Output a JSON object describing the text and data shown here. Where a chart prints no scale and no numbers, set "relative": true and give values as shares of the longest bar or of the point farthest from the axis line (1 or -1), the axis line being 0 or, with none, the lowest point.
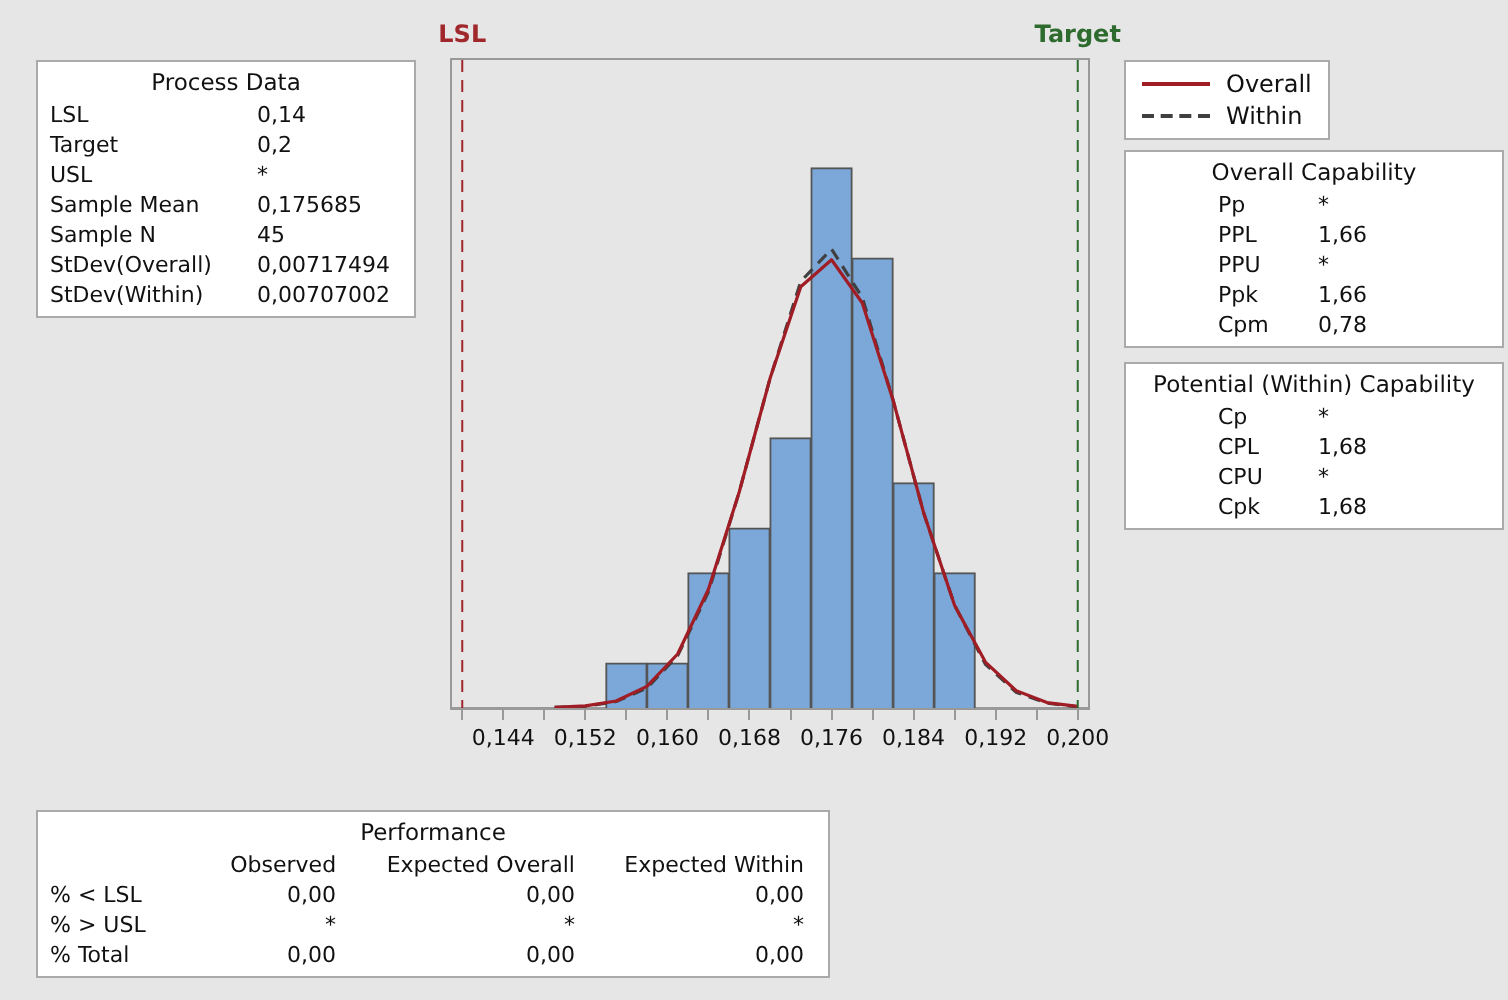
{
  "chart_data": [
    {
      "type": "histogram",
      "bins": [
        0.154,
        0.158,
        0.162,
        0.166,
        0.17,
        0.174,
        0.178,
        0.182,
        0.186,
        0.19
      ],
      "values": [
        0.083,
        0.083,
        0.25,
        0.333,
        0.5,
        1,
        0.833,
        0.417,
        0.25
      ],
      "color": "#7ba7d9",
      "relative": true,
      "series": [
        {
          "type": "line",
          "name": "Overall",
          "color": "#a01d26",
          "line_style": "solid",
          "x": [
            0.149,
            0.152,
            0.155,
            0.158,
            0.161,
            0.164,
            0.167,
            0.17,
            0.173,
            0.176,
            0.179,
            0.182,
            0.185,
            0.188,
            0.191,
            0.194,
            0.197,
            0.2
          ],
          "values": [
            0.001,
            0.004,
            0.013,
            0.04,
            0.1,
            0.22,
            0.4,
            0.61,
            0.78,
            0.83,
            0.75,
            0.57,
            0.36,
            0.19,
            0.085,
            0.032,
            0.01,
            0.003
          ]
        },
        {
          "type": "line",
          "name": "Within",
          "color": "#404040",
          "line_style": "dashed",
          "x": [
            0.149,
            0.152,
            0.155,
            0.158,
            0.161,
            0.164,
            0.167,
            0.17,
            0.173,
            0.176,
            0.179,
            0.182,
            0.185,
            0.188,
            0.191,
            0.194,
            0.197,
            0.2
          ],
          "values": [
            0.001,
            0.003,
            0.012,
            0.037,
            0.097,
            0.215,
            0.4,
            0.61,
            0.79,
            0.85,
            0.76,
            0.57,
            0.36,
            0.19,
            0.081,
            0.029,
            0.009,
            0.002
          ]
        }
      ],
      "xlim": [
        0.139,
        0.201
      ],
      "xticks": [
        {
          "value": 0.14,
          "label": null
        },
        {
          "value": 0.144,
          "label": "0,144"
        },
        {
          "value": 0.148,
          "label": null
        },
        {
          "value": 0.152,
          "label": "0,152"
        },
        {
          "value": 0.156,
          "label": null
        },
        {
          "value": 0.16,
          "label": "0,160"
        },
        {
          "value": 0.164,
          "label": null
        },
        {
          "value": 0.168,
          "label": "0,168"
        },
        {
          "value": 0.172,
          "label": null
        },
        {
          "value": 0.176,
          "label": "0,176"
        },
        {
          "value": 0.18,
          "label": null
        },
        {
          "value": 0.184,
          "label": "0,184"
        },
        {
          "value": 0.188,
          "label": null
        },
        {
          "value": 0.192,
          "label": "0,192"
        },
        {
          "value": 0.196,
          "label": null
        },
        {
          "value": 0.2,
          "label": "0,200"
        }
      ],
      "ref_lines": [
        {
          "axis": "x",
          "value": 0.14,
          "label": "LSL",
          "color": "#a0282d",
          "line_style": "dashed"
        },
        {
          "axis": "x",
          "value": 0.2,
          "label": "Target",
          "color": "#2e6b2e",
          "line_style": "dashed"
        }
      ],
      "legend": "top right",
      "grid": false,
      "tick_labels": "x",
      "marker": "none"
    },
    {
      "type": "other",
      "title": "Process Data",
      "annotations": [
        "LSL",
        "0,14",
        "Target",
        "0,2",
        "USL",
        "*",
        "Sample Mean",
        "0,175685",
        "Sample N",
        "45",
        "StDev(Overall)",
        "0,00717494",
        "StDev(Within)",
        "0,00707002"
      ]
    },
    {
      "type": "other",
      "title": "Overall Capability",
      "annotations": [
        "Pp",
        "*",
        "PPL",
        "1,66",
        "PPU",
        "*",
        "Ppk",
        "1,66",
        "Cpm",
        "0,78"
      ]
    },
    {
      "type": "other",
      "title": "Potential (Within) Capability",
      "annotations": [
        "Cp",
        "*",
        "CPL",
        "1,68",
        "CPU",
        "*",
        "Cpk",
        "1,68"
      ]
    },
    {
      "type": "other",
      "title": "Performance",
      "annotations": [
        "Observed",
        "Expected Overall",
        "Expected Within",
        "% < LSL",
        "0,00",
        "0,00",
        "0,00",
        "% > USL",
        "*",
        "*",
        "*",
        "% Total",
        "0,00",
        "0,00",
        "0,00"
      ]
    }
  ]
}
